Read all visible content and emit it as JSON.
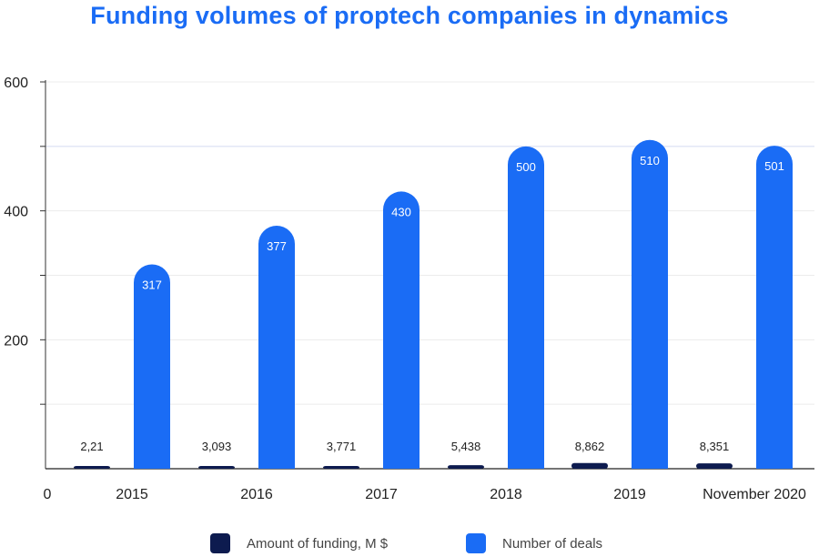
{
  "chart_data": {
    "type": "bar",
    "title": "Funding volumes of proptech companies in dynamics",
    "categories": [
      "2015",
      "2016",
      "2017",
      "2018",
      "2019",
      "November 2020"
    ],
    "series": [
      {
        "name": "Amount of funding, M $",
        "values": [
          2.21,
          3.093,
          3.771,
          5.438,
          8.862,
          8.351
        ],
        "labels": [
          "2,21",
          "3,093",
          "3,771",
          "5,438",
          "8,862",
          "8,351"
        ],
        "color": "#0d1b4f"
      },
      {
        "name": "Number of deals",
        "values": [
          317,
          377,
          430,
          500,
          510,
          501
        ],
        "labels": [
          "317",
          "377",
          "430",
          "500",
          "510",
          "501"
        ],
        "color": "#1a6cf5"
      }
    ],
    "yticks": [
      "600",
      "400",
      "200",
      "0"
    ],
    "ylim": [
      0,
      600
    ],
    "grid": true,
    "legend": "bottom"
  }
}
